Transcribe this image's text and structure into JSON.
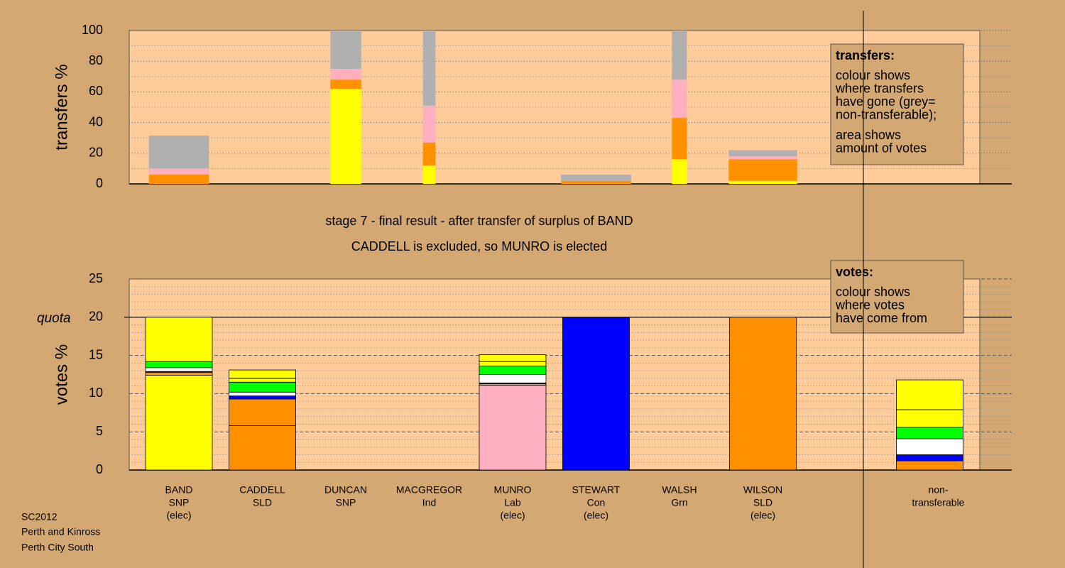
{
  "chart_data": [
    {
      "type": "bar",
      "stacked": true,
      "ylabel": "transfers %",
      "ylim": [
        0,
        100
      ],
      "yticks": [
        0,
        20,
        40,
        60,
        80,
        100
      ],
      "minor_yticks": [
        10,
        30,
        50,
        70,
        90
      ],
      "grid": true,
      "widths": [
        0.72,
        null,
        0.37,
        0.15,
        null,
        0.84,
        0.18,
        0.82,
        null,
        null
      ],
      "series": [
        {
          "color": "#ffff00",
          "values": [
            0,
            null,
            62,
            12,
            null,
            0,
            16,
            2,
            null,
            null
          ]
        },
        {
          "color": "#ff9000",
          "values": [
            6,
            null,
            6,
            15,
            null,
            2,
            27,
            14,
            null,
            null
          ]
        },
        {
          "color": "#ffb0c0",
          "values": [
            4,
            null,
            7,
            24,
            null,
            0,
            25,
            2,
            null,
            null
          ]
        },
        {
          "color": "#b0b0b0",
          "values": [
            21.5,
            null,
            25,
            49,
            null,
            4,
            32,
            4,
            null,
            null
          ]
        }
      ],
      "note": {
        "title": "transfers:",
        "paragraphs": [
          [
            "colour shows",
            "where transfers",
            "have gone (grey=",
            "non-transferable);"
          ],
          [
            "area shows",
            "amount of votes"
          ]
        ]
      }
    },
    {
      "type": "bar",
      "stacked": true,
      "ylabel": "votes %",
      "ylim": [
        0,
        25
      ],
      "yticks": [
        0,
        5,
        10,
        15,
        20,
        25
      ],
      "minor_yticks": [
        1,
        2,
        3,
        4,
        6,
        7,
        8,
        9,
        11,
        12,
        13,
        14,
        16,
        17,
        18,
        19,
        21,
        22,
        23,
        24
      ],
      "grid": true,
      "quota": 20,
      "quota_label": "quota",
      "categories": [
        [
          "BAND",
          "SNP",
          "(elec)"
        ],
        [
          "CADDELL",
          "SLD"
        ],
        [
          "DUNCAN",
          "SNP"
        ],
        [
          "MACGREGOR",
          "Ind"
        ],
        [
          "MUNRO",
          "Lab",
          "(elec)"
        ],
        [
          "STEWART",
          "Con",
          "(elec)"
        ],
        [
          "WALSH",
          "Grn"
        ],
        [
          "WILSON",
          "SLD",
          "(elec)"
        ],
        null,
        [
          "non-",
          "transferable"
        ]
      ],
      "series": [
        {
          "colors": [
            "#ffff00",
            "#ff9000",
            "#ffff00",
            "#ffffff",
            "#ffb0c0",
            "#0000ff",
            "#00ff00",
            "#ff9000",
            null,
            "#b0b0b0"
          ],
          "values": [
            12.4,
            5.8,
            0,
            0,
            11.1,
            20,
            0,
            20,
            null,
            0
          ]
        },
        {
          "color": "#ff9000",
          "values": [
            0.4,
            3.5,
            0,
            0,
            0.2,
            0,
            0,
            0,
            null,
            1.2
          ]
        },
        {
          "color": "#0000ff",
          "values": [
            0.1,
            0.4,
            0,
            0,
            0.1,
            0,
            0,
            0,
            null,
            0.8
          ]
        },
        {
          "color": "#ffffff",
          "values": [
            0.5,
            0.5,
            0,
            0,
            1.1,
            0,
            0,
            0,
            null,
            2.1
          ]
        },
        {
          "color": "#00ff00",
          "values": [
            0.8,
            1.3,
            0,
            0,
            1.1,
            0,
            0,
            0,
            null,
            1.5
          ]
        },
        {
          "color": "#ffff00",
          "values": [
            5.8,
            0.5,
            0,
            0,
            0.6,
            0,
            0,
            0,
            null,
            2.3
          ]
        },
        {
          "color": "#ffff00",
          "values": [
            0,
            1.1,
            0,
            0,
            0.9,
            0,
            0,
            0,
            null,
            3.9
          ]
        }
      ],
      "note": {
        "title": "votes:",
        "paragraphs": [
          [
            "colour shows",
            "where votes",
            "have come from"
          ]
        ]
      }
    }
  ],
  "caption": [
    "stage 7 - final result - after transfer of surplus of BAND",
    "CADDELL is excluded, so MUNRO is elected"
  ],
  "footer": [
    "SC2012",
    "Perth and Kinross",
    "Perth City South"
  ]
}
